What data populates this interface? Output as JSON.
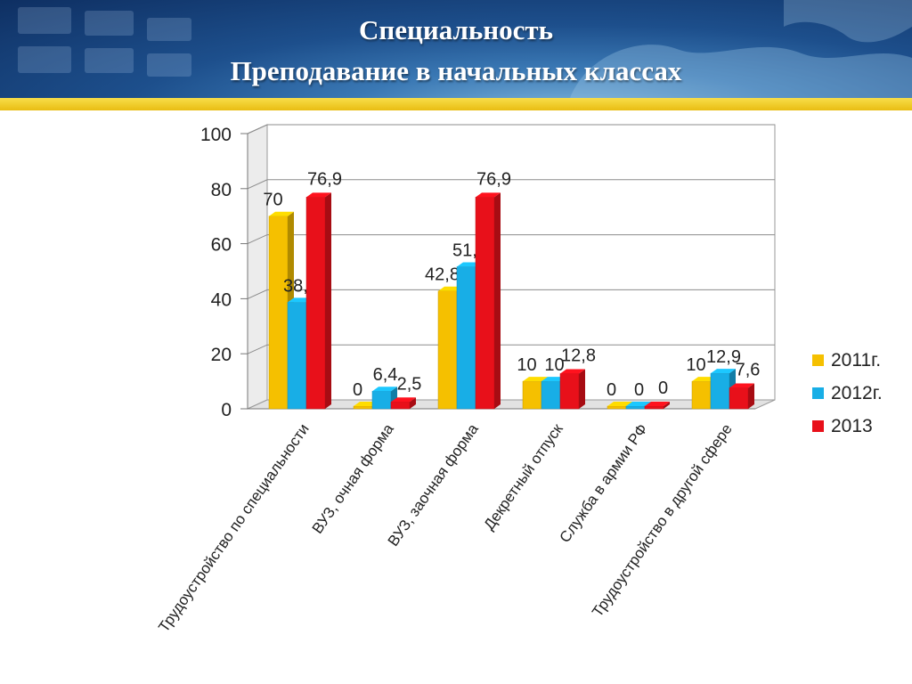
{
  "header": {
    "title_line1": "Специальность",
    "title_line2": "Преподавание в начальных классах"
  },
  "chart_data": {
    "type": "bar",
    "categories": [
      "Трудоустройство по специальности",
      "ВУЗ, очная форма",
      "ВУЗ, заочная форма",
      "Декретный отпуск",
      "Служба в армии РФ",
      "Трудоустройство в другой сфере"
    ],
    "series": [
      {
        "name": "2011г.",
        "values": [
          70,
          0,
          42.8,
          10,
          0,
          10
        ],
        "labels": [
          "70",
          "0",
          "42,8",
          "10",
          "0",
          "10"
        ],
        "color": "#f5c000"
      },
      {
        "name": "2012г.",
        "values": [
          38.7,
          6.4,
          51.6,
          10,
          0,
          12.9
        ],
        "labels": [
          "38,7",
          "6,4",
          "51,6",
          "10",
          "0",
          "12,9"
        ],
        "color": "#18aee6"
      },
      {
        "name": "2013",
        "values": [
          76.9,
          2.5,
          76.9,
          12.8,
          0,
          7.6
        ],
        "labels": [
          "76,9",
          "2,5",
          "76,9",
          "12,8",
          "0",
          "7,6"
        ],
        "color": "#e8101a"
      }
    ],
    "yticks": [
      "0",
      "20",
      "40",
      "60",
      "80",
      "100"
    ],
    "ylim": [
      0,
      100
    ],
    "grid": true,
    "legend_position": "right"
  }
}
